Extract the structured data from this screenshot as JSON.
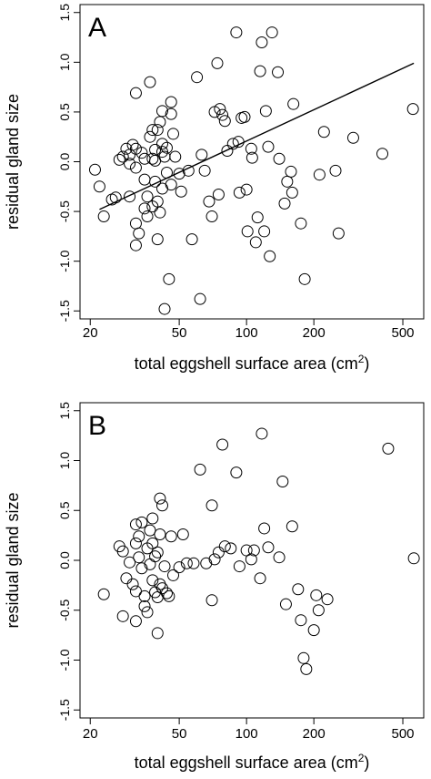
{
  "chart_data": [
    {
      "type": "scatter",
      "panel_label": "A",
      "xlabel": "total eggshell surface area (cm",
      "xlabel_sup": "2",
      "xlabel_end": ")",
      "ylabel": "residual gland size",
      "x_scale": "log",
      "xlim": [
        18,
        620
      ],
      "ylim": [
        -1.58,
        1.58
      ],
      "xticks": [
        20,
        50,
        100,
        200,
        500
      ],
      "xtick_labels": [
        "20",
        "50",
        "100",
        "200",
        "500"
      ],
      "yticks": [
        -1.5,
        -1.0,
        -0.5,
        0.0,
        0.5,
        1.0,
        1.5
      ],
      "ytick_labels": [
        "-1.5",
        "-1.0",
        "-0.5",
        "0.0",
        "0.5",
        "1.0",
        "1.5"
      ],
      "grid": false,
      "regression_line": {
        "x": [
          22,
          560
        ],
        "y": [
          -0.48,
          0.99
        ]
      },
      "points": [
        [
          21,
          -0.08
        ],
        [
          22,
          -0.25
        ],
        [
          23,
          -0.55
        ],
        [
          25,
          -0.38
        ],
        [
          26,
          -0.36
        ],
        [
          27,
          0.02
        ],
        [
          28,
          0.05
        ],
        [
          29,
          0.13
        ],
        [
          30,
          0.07
        ],
        [
          30,
          -0.02
        ],
        [
          30,
          -0.35
        ],
        [
          31,
          0.17
        ],
        [
          32,
          0.69
        ],
        [
          32,
          0.13
        ],
        [
          32,
          -0.06
        ],
        [
          32,
          -0.62
        ],
        [
          32,
          -0.84
        ],
        [
          33,
          -0.72
        ],
        [
          34,
          0.09
        ],
        [
          35,
          0.03
        ],
        [
          35,
          -0.18
        ],
        [
          35,
          -0.47
        ],
        [
          36,
          -0.55
        ],
        [
          36,
          -0.35
        ],
        [
          37,
          0.8
        ],
        [
          37,
          0.25
        ],
        [
          38,
          0.32
        ],
        [
          38,
          0.03
        ],
        [
          38,
          -0.45
        ],
        [
          39,
          0.12
        ],
        [
          39,
          0.01
        ],
        [
          39,
          -0.2
        ],
        [
          40,
          0.32
        ],
        [
          40,
          -0.4
        ],
        [
          40,
          -0.78
        ],
        [
          41,
          0.4
        ],
        [
          41,
          -0.51
        ],
        [
          42,
          0.51
        ],
        [
          42,
          0.18
        ],
        [
          42,
          0.1
        ],
        [
          42,
          -0.27
        ],
        [
          43,
          0.05
        ],
        [
          43,
          -1.48
        ],
        [
          44,
          0.14
        ],
        [
          44,
          -0.11
        ],
        [
          45,
          -1.18
        ],
        [
          46,
          0.6
        ],
        [
          46,
          0.48
        ],
        [
          46,
          -0.23
        ],
        [
          47,
          0.28
        ],
        [
          48,
          0.05
        ],
        [
          50,
          -0.12
        ],
        [
          51,
          -0.3
        ],
        [
          55,
          -0.09
        ],
        [
          57,
          -0.78
        ],
        [
          60,
          0.85
        ],
        [
          62,
          -1.38
        ],
        [
          63,
          0.07
        ],
        [
          65,
          -0.09
        ],
        [
          68,
          -0.4
        ],
        [
          70,
          -0.55
        ],
        [
          72,
          0.5
        ],
        [
          74,
          0.99
        ],
        [
          75,
          -0.33
        ],
        [
          76,
          0.53
        ],
        [
          78,
          0.47
        ],
        [
          80,
          0.41
        ],
        [
          82,
          0.11
        ],
        [
          87,
          0.18
        ],
        [
          90,
          1.3
        ],
        [
          92,
          0.2
        ],
        [
          93,
          -0.31
        ],
        [
          95,
          0.44
        ],
        [
          98,
          0.45
        ],
        [
          100,
          -0.28
        ],
        [
          101,
          -0.7
        ],
        [
          105,
          0.13
        ],
        [
          106,
          0.04
        ],
        [
          110,
          -0.81
        ],
        [
          112,
          -0.56
        ],
        [
          115,
          0.91
        ],
        [
          117,
          1.2
        ],
        [
          120,
          -0.7
        ],
        [
          122,
          0.51
        ],
        [
          125,
          0.15
        ],
        [
          127,
          -0.95
        ],
        [
          130,
          1.3
        ],
        [
          138,
          0.9
        ],
        [
          140,
          0.03
        ],
        [
          148,
          -0.42
        ],
        [
          152,
          -0.2
        ],
        [
          158,
          -0.1
        ],
        [
          160,
          -0.31
        ],
        [
          162,
          0.58
        ],
        [
          175,
          -0.62
        ],
        [
          182,
          -1.18
        ],
        [
          212,
          -0.13
        ],
        [
          222,
          0.3
        ],
        [
          250,
          -0.09
        ],
        [
          258,
          -0.72
        ],
        [
          300,
          0.24
        ],
        [
          405,
          0.08
        ],
        [
          555,
          0.53
        ]
      ]
    },
    {
      "type": "scatter",
      "panel_label": "B",
      "xlabel": "total eggshell surface area (cm",
      "xlabel_sup": "2",
      "xlabel_end": ")",
      "ylabel": "residual gland size",
      "x_scale": "log",
      "xlim": [
        18,
        620
      ],
      "ylim": [
        -1.58,
        1.58
      ],
      "xticks": [
        20,
        50,
        100,
        200,
        500
      ],
      "xtick_labels": [
        "20",
        "50",
        "100",
        "200",
        "500"
      ],
      "yticks": [
        -1.5,
        -1.0,
        -0.5,
        0.0,
        0.5,
        1.0,
        1.5
      ],
      "ytick_labels": [
        "-1.5",
        "-1.0",
        "-0.5",
        "0.0",
        "0.5",
        "1.0",
        "1.5"
      ],
      "grid": false,
      "points": [
        [
          23,
          -0.34
        ],
        [
          27,
          0.14
        ],
        [
          28,
          0.09
        ],
        [
          28,
          -0.56
        ],
        [
          29,
          -0.18
        ],
        [
          30,
          -0.02
        ],
        [
          31,
          -0.24
        ],
        [
          32,
          0.36
        ],
        [
          32,
          0.17
        ],
        [
          32,
          -0.31
        ],
        [
          32,
          -0.61
        ],
        [
          33,
          0.24
        ],
        [
          33,
          0.03
        ],
        [
          34,
          0.38
        ],
        [
          34,
          -0.08
        ],
        [
          35,
          -0.36
        ],
        [
          35,
          -0.46
        ],
        [
          36,
          -0.52
        ],
        [
          36,
          0.12
        ],
        [
          37,
          0.3
        ],
        [
          37,
          -0.04
        ],
        [
          38,
          0.42
        ],
        [
          38,
          0.17
        ],
        [
          38,
          -0.2
        ],
        [
          39,
          0.04
        ],
        [
          39,
          -0.32
        ],
        [
          40,
          0.08
        ],
        [
          40,
          -0.37
        ],
        [
          40,
          -0.73
        ],
        [
          41,
          0.62
        ],
        [
          41,
          0.26
        ],
        [
          41,
          -0.24
        ],
        [
          42,
          0.55
        ],
        [
          42,
          -0.28
        ],
        [
          43,
          -0.06
        ],
        [
          44,
          -0.33
        ],
        [
          45,
          -0.36
        ],
        [
          46,
          0.24
        ],
        [
          47,
          -0.15
        ],
        [
          50,
          -0.07
        ],
        [
          52,
          0.26
        ],
        [
          54,
          -0.03
        ],
        [
          58,
          -0.03
        ],
        [
          62,
          0.91
        ],
        [
          66,
          -0.03
        ],
        [
          70,
          0.55
        ],
        [
          70,
          -0.4
        ],
        [
          72,
          0.01
        ],
        [
          75,
          0.08
        ],
        [
          78,
          1.16
        ],
        [
          80,
          0.14
        ],
        [
          85,
          0.12
        ],
        [
          90,
          0.88
        ],
        [
          93,
          -0.06
        ],
        [
          100,
          0.1
        ],
        [
          105,
          0.01
        ],
        [
          108,
          0.1
        ],
        [
          115,
          -0.18
        ],
        [
          117,
          1.27
        ],
        [
          120,
          0.32
        ],
        [
          125,
          0.13
        ],
        [
          140,
          0.03
        ],
        [
          145,
          0.79
        ],
        [
          150,
          -0.44
        ],
        [
          160,
          0.34
        ],
        [
          170,
          -0.29
        ],
        [
          175,
          -0.6
        ],
        [
          180,
          -0.98
        ],
        [
          185,
          -1.09
        ],
        [
          200,
          -0.7
        ],
        [
          205,
          -0.35
        ],
        [
          210,
          -0.5
        ],
        [
          230,
          -0.39
        ],
        [
          430,
          1.12
        ],
        [
          560,
          0.02
        ]
      ]
    }
  ]
}
